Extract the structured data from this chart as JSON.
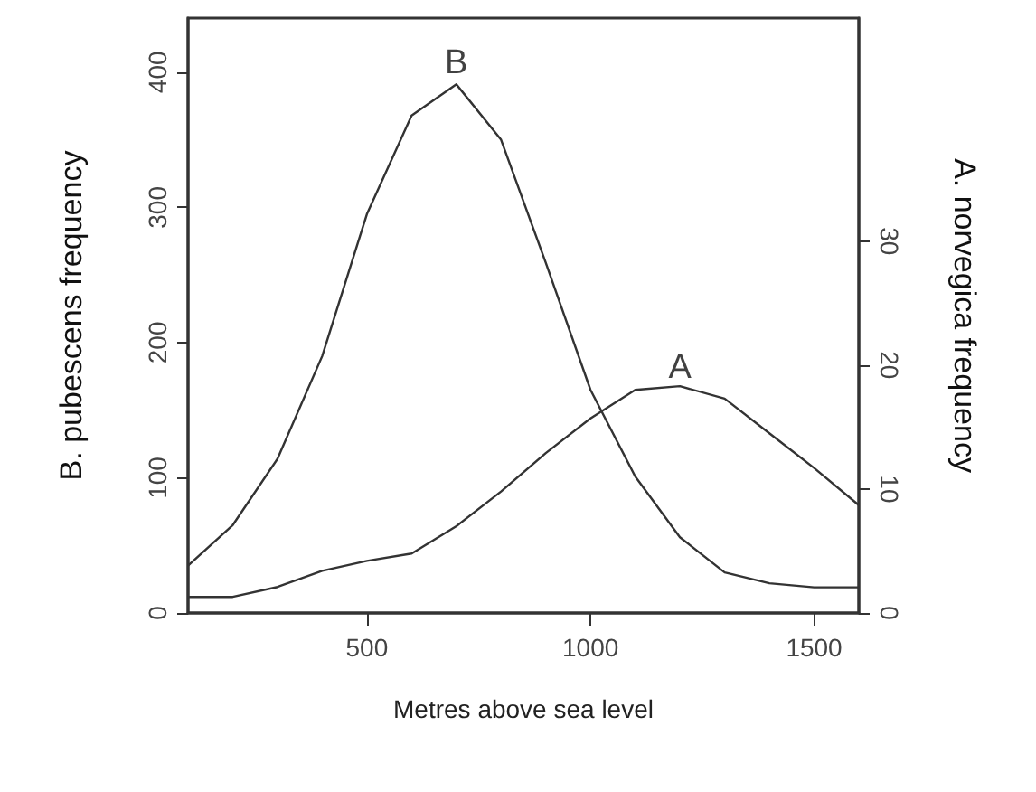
{
  "chart_data": {
    "type": "line",
    "xlabel": "Metres above sea level",
    "ylabel": "B. pubescens frequency",
    "y2label": "A. norvegica frequency",
    "x": [
      100,
      200,
      300,
      400,
      500,
      600,
      700,
      800,
      900,
      1000,
      1100,
      1200,
      1300,
      1400,
      1500,
      1600
    ],
    "series": [
      {
        "color": "#333333",
        "values": [
          35,
          65,
          114,
          190,
          295,
          368,
          391,
          350,
          259,
          165,
          101,
          56,
          30,
          22,
          19,
          19
        ]
      },
      {
        "color": "#333333",
        "axis": "y2",
        "values": [
          1.3,
          1.3,
          2.1,
          3.4,
          4.2,
          4.8,
          7.0,
          9.8,
          12.9,
          15.7,
          18.0,
          18.3,
          17.3,
          14.5,
          11.7,
          8.7
        ]
      }
    ],
    "xlim": [
      100,
      1600
    ],
    "xticks": [
      500,
      1000,
      1500
    ],
    "ylim": [
      0,
      440
    ],
    "yticks": [
      0,
      100,
      200,
      300,
      400
    ],
    "y2lim": [
      0,
      48
    ],
    "y2ticks": [
      0,
      10,
      20,
      30
    ],
    "annotations": [
      {
        "text": "B",
        "x": 700,
        "y": 391
      },
      {
        "text": "A",
        "x": 1200,
        "y": 166
      }
    ],
    "grid": false,
    "marker": "none",
    "line_style": "solid"
  }
}
